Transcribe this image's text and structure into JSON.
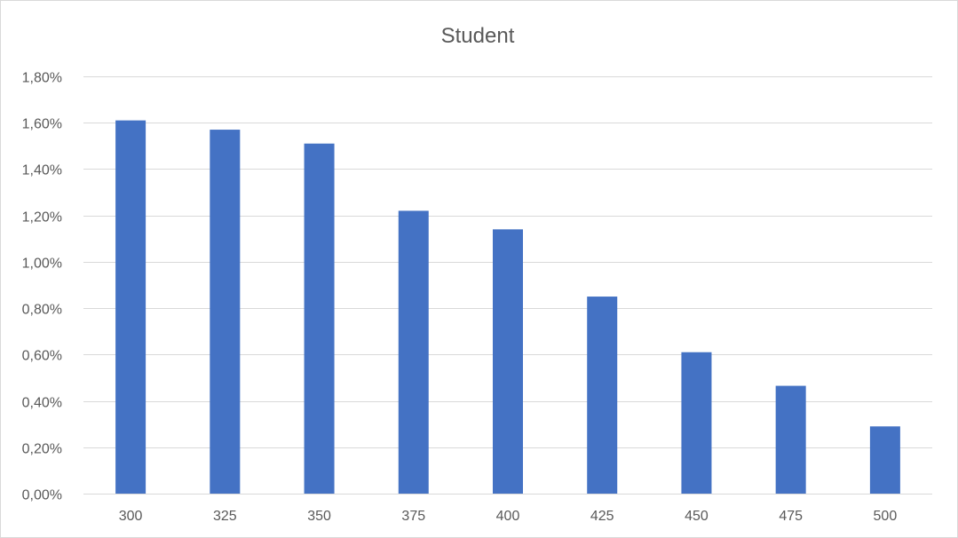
{
  "chart_data": {
    "type": "bar",
    "title": "Student",
    "xlabel": "",
    "ylabel": "",
    "categories": [
      "300",
      "325",
      "350",
      "375",
      "400",
      "425",
      "450",
      "475",
      "500"
    ],
    "values": [
      1.61,
      1.57,
      1.51,
      1.22,
      1.14,
      0.85,
      0.61,
      0.465,
      0.29
    ],
    "value_unit": "percent",
    "ylim": [
      0,
      1.8
    ],
    "yticks": [
      0,
      0.2,
      0.4,
      0.6,
      0.8,
      1.0,
      1.2,
      1.4,
      1.6,
      1.8
    ],
    "ytick_labels": [
      "0,00%",
      "0,20%",
      "0,40%",
      "0,60%",
      "0,80%",
      "1,00%",
      "1,20%",
      "1,40%",
      "1,60%",
      "1,80%"
    ],
    "grid": true,
    "legend": "none",
    "bar_color": "#4472C4"
  }
}
